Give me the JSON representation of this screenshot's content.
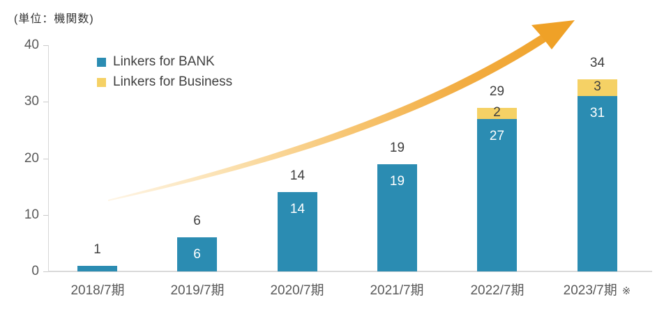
{
  "chart_data": {
    "type": "bar",
    "stacked": true,
    "title": "(単位：機関数)",
    "categories": [
      "2018/7期",
      "2019/7期",
      "2020/7期",
      "2021/7期",
      "2022/7期",
      "2023/7期"
    ],
    "series": [
      {
        "name": "Linkers for BANK",
        "color": "#2b8cb2",
        "values": [
          1,
          6,
          14,
          19,
          27,
          31
        ]
      },
      {
        "name": "Linkers for Business",
        "color": "#f5d165",
        "values": [
          0,
          0,
          0,
          0,
          2,
          3
        ]
      }
    ],
    "totals": [
      1,
      6,
      14,
      19,
      29,
      34
    ],
    "yticks": [
      0,
      10,
      20,
      30,
      40
    ],
    "ylim": [
      0,
      40
    ],
    "grid": false,
    "legend_position": "top-left-inside",
    "footnote_mark": "※",
    "annotations": [
      "upward growth arrow from lower-left to upper-right"
    ]
  },
  "colors": {
    "bank": "#2b8cb2",
    "business": "#f5d165",
    "arrow_gradient": [
      "#fef5e6",
      "#fbe0ae",
      "#f7c572",
      "#f2ac41",
      "#efa127"
    ],
    "axis_line": "#d9d9d9",
    "tick_label": "#595959",
    "data_label": "#3f3f3f",
    "bar_label_light": "#ffffff"
  }
}
